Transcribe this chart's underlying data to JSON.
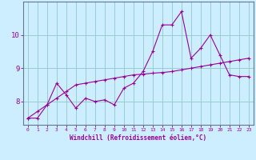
{
  "xlabel": "Windchill (Refroidissement éolien,°C)",
  "x_hours": [
    0,
    1,
    2,
    3,
    4,
    5,
    6,
    7,
    8,
    9,
    10,
    11,
    12,
    13,
    14,
    15,
    16,
    17,
    18,
    19,
    20,
    21,
    22,
    23
  ],
  "line1_y": [
    7.5,
    7.7,
    7.9,
    8.1,
    8.3,
    8.5,
    8.55,
    8.6,
    8.65,
    8.7,
    8.75,
    8.8,
    8.82,
    8.85,
    8.87,
    8.9,
    8.95,
    9.0,
    9.05,
    9.1,
    9.15,
    9.2,
    9.25,
    9.3
  ],
  "line2_y": [
    7.5,
    7.5,
    7.9,
    8.55,
    8.2,
    7.8,
    8.1,
    8.0,
    8.05,
    7.9,
    8.4,
    8.55,
    8.9,
    9.5,
    10.3,
    10.3,
    10.7,
    9.3,
    9.6,
    10.0,
    9.4,
    8.8,
    8.75,
    8.75
  ],
  "bg_color": "#cceeff",
  "line_color": "#990099",
  "grid_color": "#99cccc",
  "ylim": [
    7.3,
    11.0
  ],
  "yticks": [
    8,
    9,
    10
  ],
  "xlim": [
    -0.5,
    23.5
  ]
}
